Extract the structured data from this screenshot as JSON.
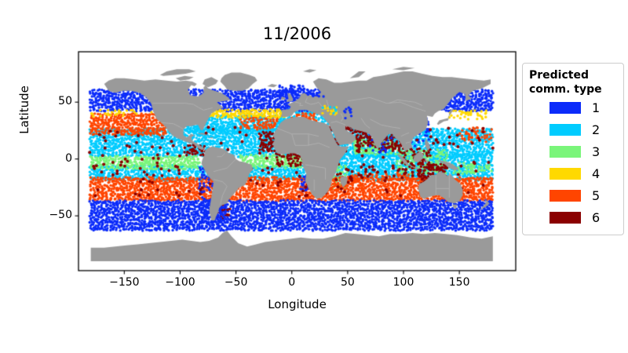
{
  "chart_data": {
    "type": "scatter",
    "title": "11/2006",
    "xlabel": "Longitude",
    "ylabel": "Latitude",
    "xlim": [
      -191,
      200.5
    ],
    "ylim": [
      -98.2,
      94.3
    ],
    "xticks": {
      "values": [
        -150,
        -100,
        -50,
        0,
        50,
        100,
        150
      ],
      "labels": [
        "−150",
        "−100",
        "−50",
        "0",
        "50",
        "100",
        "150"
      ]
    },
    "yticks": {
      "values": [
        50,
        0,
        -50
      ],
      "labels": [
        "50",
        "0",
        "−50"
      ]
    },
    "grid": false,
    "legend": {
      "title": "Predicted comm. type",
      "position": "outside-right",
      "entries": [
        {
          "label": "1",
          "color": "#0b2bfa"
        },
        {
          "label": "2",
          "color": "#00ccff"
        },
        {
          "label": "3",
          "color": "#7af57a"
        },
        {
          "label": "4",
          "color": "#ffd900"
        },
        {
          "label": "5",
          "color": "#ff4500"
        },
        {
          "label": "6",
          "color": "#8b0000"
        }
      ]
    },
    "classes": {
      "1": "#0b2bfa",
      "2": "#00ccff",
      "3": "#7af57a",
      "4": "#ffd900",
      "5": "#ff4500",
      "6": "#8b0000"
    },
    "map": {
      "land_color": "#9a9a9a",
      "border_color": "#b5b5b5",
      "ocean_color": "#ffffff"
    },
    "regions": [
      {
        "type": 2,
        "lon": [
          -180,
          180
        ],
        "lat": [
          3,
          26
        ],
        "density": 0.95
      },
      {
        "type": 2,
        "lon": [
          -100,
          -6
        ],
        "lat": [
          24,
          39
        ],
        "density": 0.95
      },
      {
        "type": 2,
        "lon": [
          -10,
          36
        ],
        "lat": [
          30,
          44
        ],
        "density": 0.8
      },
      {
        "type": 2,
        "lon": [
          -180,
          180
        ],
        "lat": [
          -18,
          -5
        ],
        "density": 0.95
      },
      {
        "type": 2,
        "lon": [
          40,
          120
        ],
        "lat": [
          -6,
          5
        ],
        "density": 0.9
      },
      {
        "type": 2,
        "lon": [
          120,
          180
        ],
        "lat": [
          -5,
          3
        ],
        "density": 0.85
      },
      {
        "type": 3,
        "lon": [
          -180,
          -82
        ],
        "lat": [
          -8,
          3
        ],
        "density": 0.95
      },
      {
        "type": 3,
        "lon": [
          -45,
          9
        ],
        "lat": [
          -7,
          3
        ],
        "density": 0.9
      },
      {
        "type": 3,
        "lon": [
          160,
          180
        ],
        "lat": [
          -11,
          -4
        ],
        "density": 0.55
      },
      {
        "type": 3,
        "lon": [
          142,
          163
        ],
        "lat": [
          -12,
          -4
        ],
        "density": 0.5
      },
      {
        "type": 3,
        "lon": [
          56,
          77
        ],
        "lat": [
          5,
          20
        ],
        "density": 0.85
      },
      {
        "type": 3,
        "lon": [
          77,
          99
        ],
        "lat": [
          5,
          17
        ],
        "density": 0.5
      },
      {
        "type": 3,
        "lon": [
          95,
          140
        ],
        "lat": [
          -12,
          8
        ],
        "density": 0.5
      },
      {
        "type": 3,
        "lon": [
          36,
          50
        ],
        "lat": [
          -26,
          -4
        ],
        "density": 0.45
      },
      {
        "type": 5,
        "lon": [
          -180,
          -112
        ],
        "lat": [
          22,
          40
        ],
        "density": 0.93
      },
      {
        "type": 5,
        "lon": [
          150,
          180
        ],
        "lat": [
          16,
          29
        ],
        "density": 0.45
      },
      {
        "type": 5,
        "lon": [
          -45,
          -12
        ],
        "lat": [
          27,
          37
        ],
        "density": 0.6
      },
      {
        "type": 5,
        "lon": [
          0,
          22
        ],
        "lat": [
          32,
          40
        ],
        "density": 0.55
      },
      {
        "type": 5,
        "lon": [
          -180,
          180
        ],
        "lat": [
          -36,
          -17
        ],
        "density": 0.95
      },
      {
        "type": 5,
        "lon": [
          50,
          110
        ],
        "lat": [
          -17,
          -13
        ],
        "density": 0.5
      },
      {
        "type": 1,
        "lon": [
          -180,
          180
        ],
        "lat": [
          43,
          61
        ],
        "density": 0.96
      },
      {
        "type": 1,
        "lon": [
          -12,
          12
        ],
        "lat": [
          55,
          66
        ],
        "density": 0.7
      },
      {
        "type": 1,
        "lon": [
          -180,
          180
        ],
        "lat": [
          -62,
          -37
        ],
        "density": 0.96
      },
      {
        "type": 4,
        "lon": [
          -75,
          -5
        ],
        "lat": [
          37,
          44
        ],
        "density": 0.85
      },
      {
        "type": 4,
        "lon": [
          140,
          175
        ],
        "lat": [
          36,
          43
        ],
        "density": 0.5
      },
      {
        "type": 4,
        "lon": [
          -180,
          -150
        ],
        "lat": [
          38,
          43
        ],
        "density": 0.3
      },
      {
        "type": 4,
        "lon": [
          -180,
          -115
        ],
        "lat": [
          40,
          43
        ],
        "density": 0.15
      },
      {
        "type": 6,
        "lon": [
          -28,
          -13
        ],
        "lat": [
          8,
          25
        ],
        "density": 0.85
      },
      {
        "type": 6,
        "lon": [
          -13,
          10
        ],
        "lat": [
          -6,
          6
        ],
        "density": 0.5
      },
      {
        "type": 6,
        "lon": [
          33,
          44
        ],
        "lat": [
          12,
          28
        ],
        "density": 0.65
      },
      {
        "type": 6,
        "lon": [
          47,
          57
        ],
        "lat": [
          23,
          30
        ],
        "density": 0.6
      },
      {
        "type": 6,
        "lon": [
          58,
          77
        ],
        "lat": [
          12,
          26
        ],
        "density": 0.8
      },
      {
        "type": 6,
        "lon": [
          78,
          98
        ],
        "lat": [
          7,
          22
        ],
        "density": 0.75
      },
      {
        "type": 6,
        "lon": [
          97,
          125
        ],
        "lat": [
          -9,
          9
        ],
        "density": 0.5
      },
      {
        "type": 6,
        "lon": [
          114,
          137
        ],
        "lat": [
          -20,
          -4
        ],
        "density": 0.75
      },
      {
        "type": 6,
        "lon": [
          -95,
          -77
        ],
        "lat": [
          4,
          12
        ],
        "density": 0.45
      },
      {
        "type": 6,
        "lon": [
          -68,
          -55
        ],
        "lat": [
          -52,
          -40
        ],
        "density": 0.4
      },
      {
        "type": 1,
        "lon": [
          -82,
          -70
        ],
        "lat": [
          -36,
          -6
        ],
        "density": 0.45
      },
      {
        "type": 1,
        "lon": [
          -80,
          -58
        ],
        "lat": [
          -55,
          -38
        ],
        "density": 0.45
      },
      {
        "type": 1,
        "lon": [
          8,
          17
        ],
        "lat": [
          -28,
          -15
        ],
        "density": 0.55
      },
      {
        "type": 1,
        "lon": [
          105,
          123
        ],
        "lat": [
          12,
          35
        ],
        "density": 0.3
      },
      {
        "type": 1,
        "lon": [
          68,
          90
        ],
        "lat": [
          6,
          23
        ],
        "density": 0.2
      },
      {
        "type": 6,
        "lon": [
          40,
          110
        ],
        "lat": [
          -18,
          -4
        ],
        "density": 0.12,
        "r": 2
      },
      {
        "type": 6,
        "lon": [
          -180,
          180
        ],
        "lat": [
          -32,
          27
        ],
        "density": 0.04,
        "r": 2
      },
      {
        "type": 4,
        "lon": [
          27,
          41
        ],
        "lat": [
          40,
          46
        ],
        "density": 0.45,
        "over": true
      },
      {
        "type": 2,
        "lon": [
          27,
          41
        ],
        "lat": [
          40,
          46
        ],
        "density": 0.3,
        "over": true
      },
      {
        "type": 1,
        "lon": [
          48,
          54
        ],
        "lat": [
          37,
          46
        ],
        "density": 0.4,
        "over": true
      },
      {
        "type": 1,
        "lon": [
          14,
          28
        ],
        "lat": [
          54,
          60
        ],
        "density": 0.3,
        "over": true
      }
    ]
  }
}
